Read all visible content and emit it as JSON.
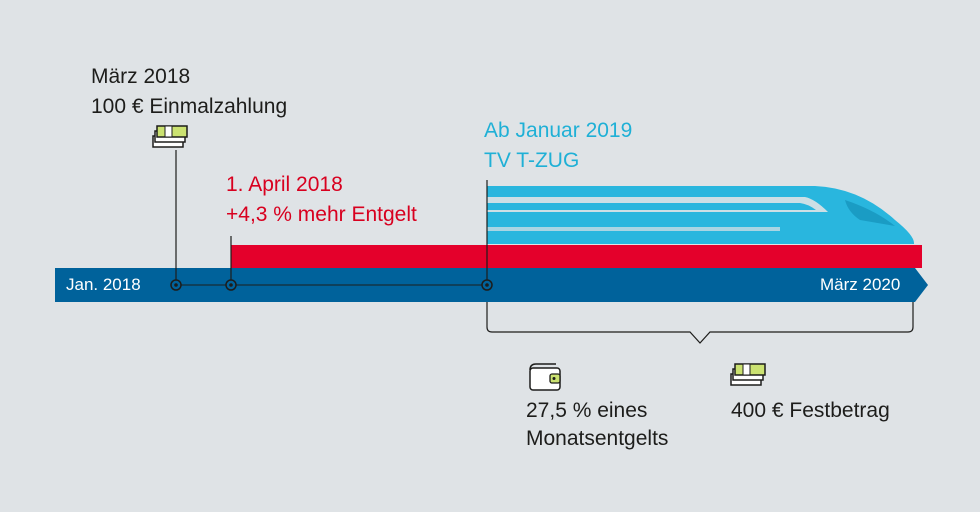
{
  "timeline": {
    "start_label": "Jan. 2018",
    "end_label": "März 2020"
  },
  "events": {
    "one_time_payment": {
      "date": "März 2018",
      "text": "100 € Einmalzahlung"
    },
    "wage_increase": {
      "date": "1. April 2018",
      "text": "+4,3 % mehr Entgelt"
    },
    "t_zug": {
      "date": "Ab Januar 2019",
      "text": "TV T-ZUG"
    }
  },
  "options": {
    "percent": {
      "line1": "27,5 % eines",
      "line2": "Monatsentgelts"
    },
    "fixed": {
      "text": "400 € Festbetrag"
    }
  },
  "colors": {
    "background": "#dfe3e6",
    "timeline_bar": "#00629b",
    "wage_bar": "#e4002b",
    "train": "#29b6de",
    "money_green": "#cbe271"
  },
  "icons": [
    "money-stack-icon",
    "wallet-icon",
    "train-icon"
  ]
}
